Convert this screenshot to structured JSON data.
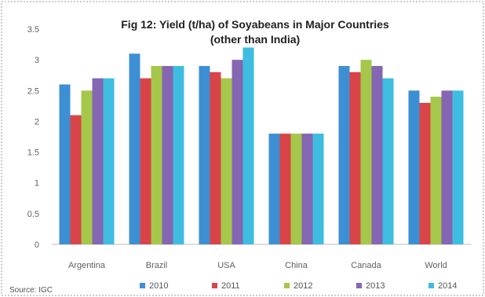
{
  "chart_data": {
    "type": "bar",
    "title_line1": "Fig 12: Yield (t/ha) of Soyabeans in Major Countries",
    "title_line2": "(other than India)",
    "categories": [
      "Argentina",
      "Brazil",
      "USA",
      "China",
      "Canada",
      "World"
    ],
    "series": [
      {
        "name": "2010",
        "color": "#3d8fd3",
        "values": [
          2.6,
          3.1,
          2.9,
          1.8,
          2.9,
          2.5
        ]
      },
      {
        "name": "2011",
        "color": "#d94448",
        "values": [
          2.1,
          2.7,
          2.8,
          1.8,
          2.8,
          2.3
        ]
      },
      {
        "name": "2012",
        "color": "#a5c74a",
        "values": [
          2.5,
          2.9,
          2.7,
          1.8,
          3.0,
          2.4
        ]
      },
      {
        "name": "2013",
        "color": "#8466b2",
        "values": [
          2.7,
          2.9,
          3.0,
          1.8,
          2.9,
          2.5
        ]
      },
      {
        "name": "2014",
        "color": "#3ebde0",
        "values": [
          2.7,
          2.9,
          3.2,
          1.8,
          2.7,
          2.5
        ]
      }
    ],
    "y_ticks": [
      "0",
      "0.5",
      "1",
      "1.5",
      "2",
      "2.5",
      "3",
      "3.5"
    ],
    "ylim": [
      0,
      3.5
    ],
    "grid": false,
    "legend_position": "bottom",
    "source": "Source: IGC"
  }
}
